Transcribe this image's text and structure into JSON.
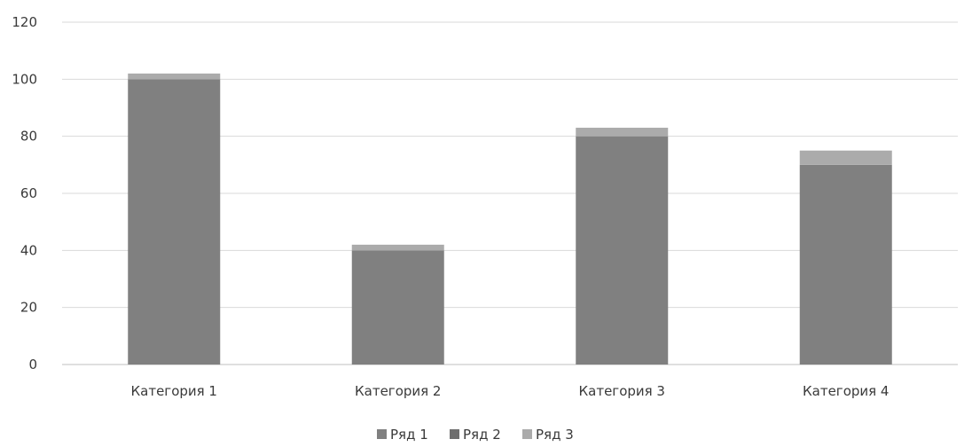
{
  "chart_data": {
    "type": "bar",
    "stacked": true,
    "categories": [
      "Категория 1",
      "Категория 2",
      "Категория 3",
      "Категория 4"
    ],
    "series": [
      {
        "name": "Ряд 1",
        "values": [
          100,
          40,
          80,
          70
        ],
        "color": "#808080"
      },
      {
        "name": "Ряд 2",
        "values": [
          0,
          0,
          0,
          0
        ],
        "color": "#6e6e6e"
      },
      {
        "name": "Ряд 3",
        "values": [
          2,
          2,
          3,
          5
        ],
        "color": "#ababab"
      }
    ],
    "title": "",
    "xlabel": "",
    "ylabel": "",
    "ylim": [
      0,
      120
    ],
    "yticks": [
      0,
      20,
      40,
      60,
      80,
      100,
      120
    ],
    "grid": true,
    "legend_position": "bottom"
  }
}
